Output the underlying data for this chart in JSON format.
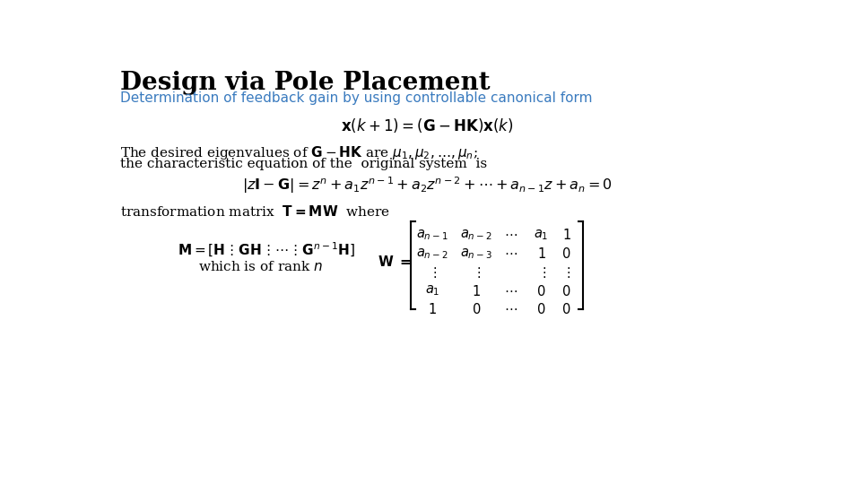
{
  "title": "Design via Pole Placement",
  "subtitle": "Determination of feedback gain by using controllable canonical form",
  "title_color": "#000000",
  "subtitle_color": "#3a7bbf",
  "bg_color": "#ffffff",
  "title_fontsize": 20,
  "subtitle_fontsize": 11,
  "body_fontsize": 11,
  "eq1_fontsize": 12,
  "eq2_fontsize": 11.5,
  "matrix_fontsize": 10.5
}
